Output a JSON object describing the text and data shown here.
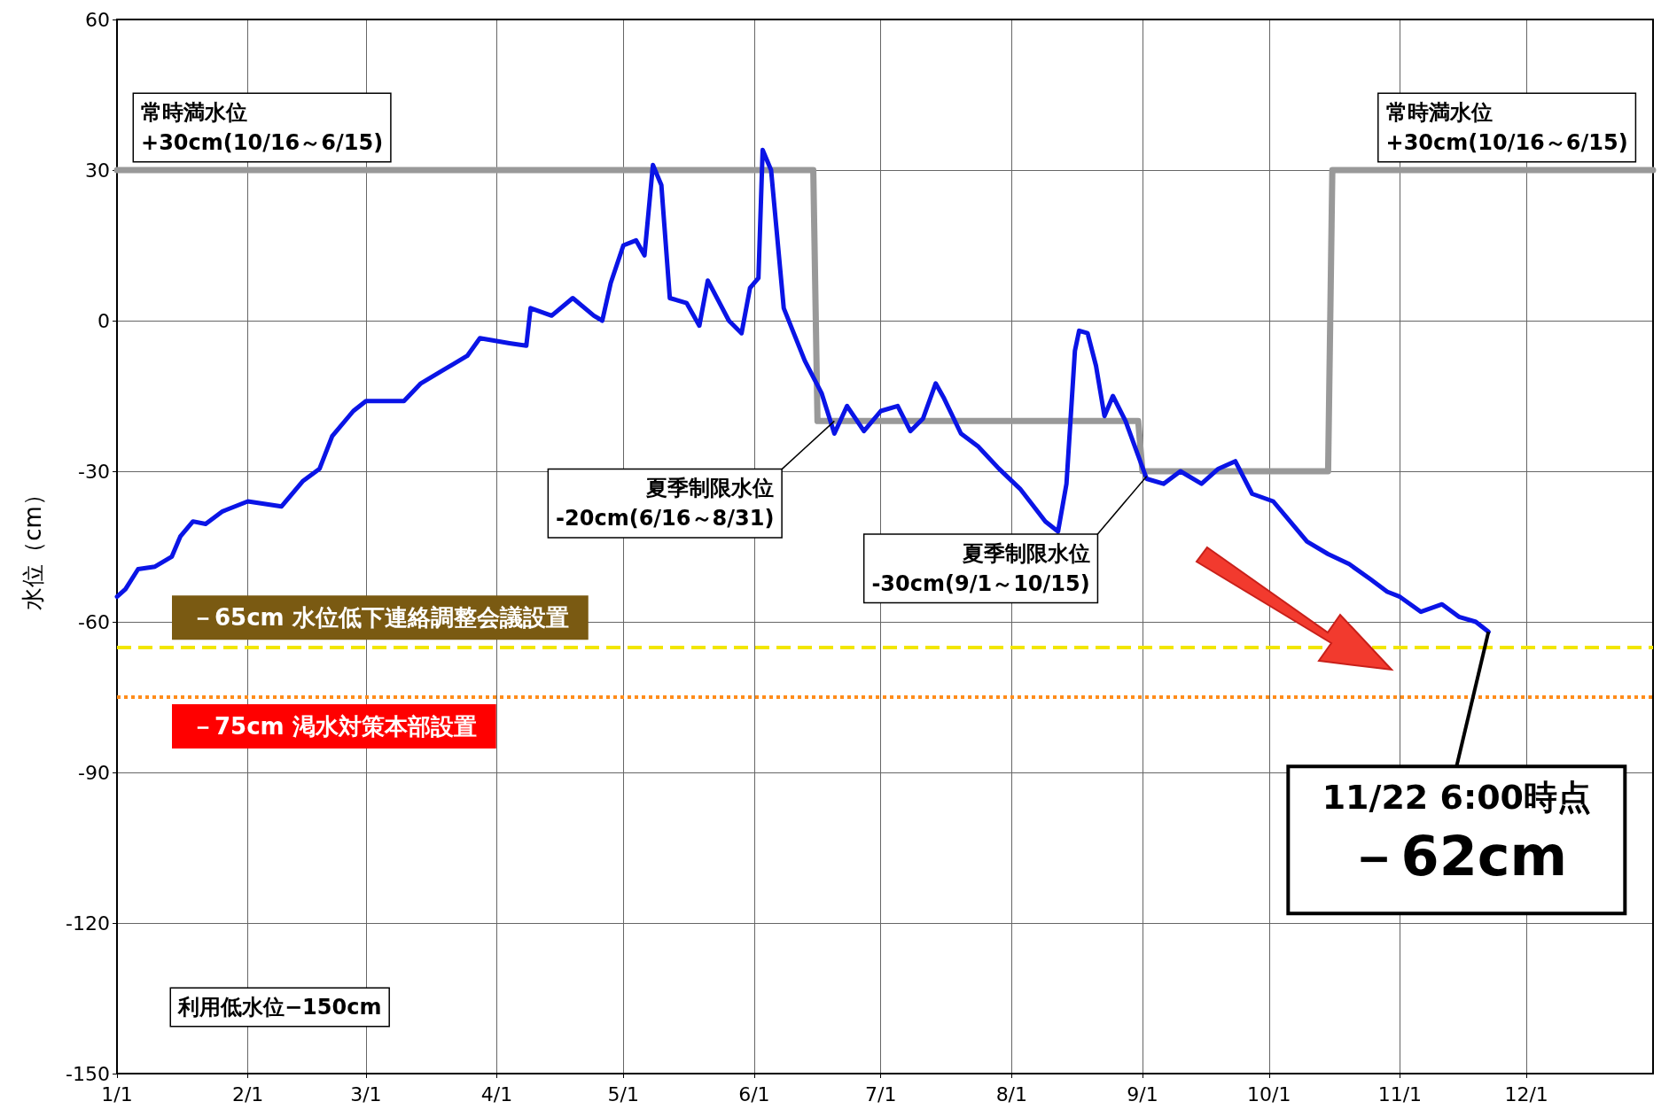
{
  "chart_data": {
    "type": "line",
    "ylabel": "水位（cm）",
    "xlim": [
      "--01-01",
      "--12-31"
    ],
    "xticks": [
      {
        "value": "--01-01",
        "label": "1/1"
      },
      {
        "value": "--02-01",
        "label": "2/1"
      },
      {
        "value": "--03-01",
        "label": "3/1"
      },
      {
        "value": "--04-01",
        "label": "4/1"
      },
      {
        "value": "--05-01",
        "label": "5/1"
      },
      {
        "value": "--06-01",
        "label": "6/1"
      },
      {
        "value": "--07-01",
        "label": "7/1"
      },
      {
        "value": "--08-01",
        "label": "8/1"
      },
      {
        "value": "--09-01",
        "label": "9/1"
      },
      {
        "value": "--10-01",
        "label": "10/1"
      },
      {
        "value": "--11-01",
        "label": "11/1"
      },
      {
        "value": "--12-01",
        "label": "12/1"
      }
    ],
    "ylim": [
      -150,
      60
    ],
    "yticks": [
      -150,
      -120,
      -90,
      -60,
      -30,
      0,
      30,
      60
    ],
    "grid": true,
    "marker": "none",
    "line_style": "solid",
    "series": [
      {
        "color": "#999999",
        "x": [
          "--01-01",
          "--06-15",
          "--06-16",
          "--08-31",
          "--09-01",
          "--10-15",
          "--10-16",
          "--12-31"
        ],
        "values": [
          30,
          30,
          -20,
          -20,
          -30,
          -30,
          30,
          30
        ]
      },
      {
        "color": "#0a14e6",
        "x": [
          "--01-01",
          "--01-03",
          "--01-06",
          "--01-10",
          "--01-14",
          "--01-16",
          "--01-19",
          "--01-22",
          "--01-26",
          "--02-01",
          "--02-09",
          "--02-14",
          "--02-18",
          "--02-21",
          "--02-26",
          "--03-01",
          "--03-10",
          "--03-14",
          "--03-19",
          "--03-25",
          "--03-28",
          "--04-04",
          "--04-08",
          "--04-09",
          "--04-14",
          "--04-19",
          "--04-24",
          "--04-26",
          "--04-28",
          "--05-01",
          "--05-04",
          "--05-06",
          "--05-08",
          "--05-10",
          "--05-12",
          "--05-16",
          "--05-19",
          "--05-21",
          "--05-26",
          "--05-29",
          "--05-31",
          "--06-02",
          "--06-03",
          "--06-05",
          "--06-08",
          "--06-13",
          "--06-17",
          "--06-20",
          "--06-23",
          "--06-27",
          "--07-01",
          "--07-05",
          "--07-08",
          "--07-11",
          "--07-14",
          "--07-16",
          "--07-20",
          "--07-24",
          "--07-29",
          "--08-03",
          "--08-09",
          "--08-12",
          "--08-14",
          "--08-16",
          "--08-17",
          "--08-19",
          "--08-21",
          "--08-23",
          "--08-25",
          "--08-28",
          "--09-02",
          "--09-06",
          "--09-10",
          "--09-15",
          "--09-19",
          "--09-23",
          "--09-27",
          "--10-02",
          "--10-07",
          "--10-10",
          "--10-15",
          "--10-20",
          "--10-25",
          "--10-29",
          "--11-01",
          "--11-06",
          "--11-11",
          "--11-15",
          "--11-19",
          "--11-22"
        ],
        "values": [
          -55,
          -53.5,
          -49.5,
          -49,
          -47,
          -43,
          -40,
          -40.5,
          -38,
          -36,
          -37,
          -32,
          -29.5,
          -23,
          -18,
          -16,
          -16,
          -12.5,
          -10,
          -7,
          -3.5,
          -4.5,
          -5,
          2.5,
          1,
          4.5,
          1,
          0,
          7.5,
          15,
          16,
          13,
          31,
          27,
          4.5,
          3.5,
          -1,
          8,
          0,
          -2.5,
          6.5,
          8.5,
          34,
          30,
          2.5,
          -8,
          -14.5,
          -22.5,
          -17,
          -22,
          -18,
          -17,
          -22,
          -19.5,
          -12.5,
          -15.5,
          -22.5,
          -25,
          -29.5,
          -33.5,
          -40,
          -42,
          -32.5,
          -6,
          -2,
          -2.5,
          -9,
          -19,
          -15,
          -20,
          -31.5,
          -32.5,
          -30,
          -32.5,
          -29.5,
          -28,
          -34.5,
          -36,
          -41,
          -44,
          -46.5,
          -48.5,
          -51.5,
          -54,
          -55,
          -58,
          -56.5,
          -59,
          -60,
          -62
        ]
      }
    ],
    "ref_lines": [
      {
        "axis": "y",
        "value": -65,
        "label": "－65cm 水位低下連絡調整会議設置",
        "color": "#f2e600",
        "line_style": "dashed"
      },
      {
        "axis": "y",
        "value": -75,
        "label": "－75cm 渇水対策本部設置",
        "color": "#ff8c1a",
        "line_style": "dotted"
      }
    ],
    "annotations": [
      {
        "text": "常時満水位\n+30cm(10/16～6/15)",
        "x": "--01-05",
        "y": 30
      },
      {
        "text": "常時満水位\n+30cm(10/16～6/15)",
        "x": "--10-27",
        "y": 30
      },
      {
        "text": "夏季制限水位\n-20cm(6/16～8/31)",
        "x": "--06-20",
        "y": -20
      },
      {
        "text": "夏季制限水位\n-30cm(9/1～10/15)",
        "x": "--09-02",
        "y": -31
      },
      "利用低水位−150cm",
      {
        "text": "11/22 6:00時点",
        "x": "--11-22",
        "y": -62
      },
      "－62cm"
    ]
  }
}
